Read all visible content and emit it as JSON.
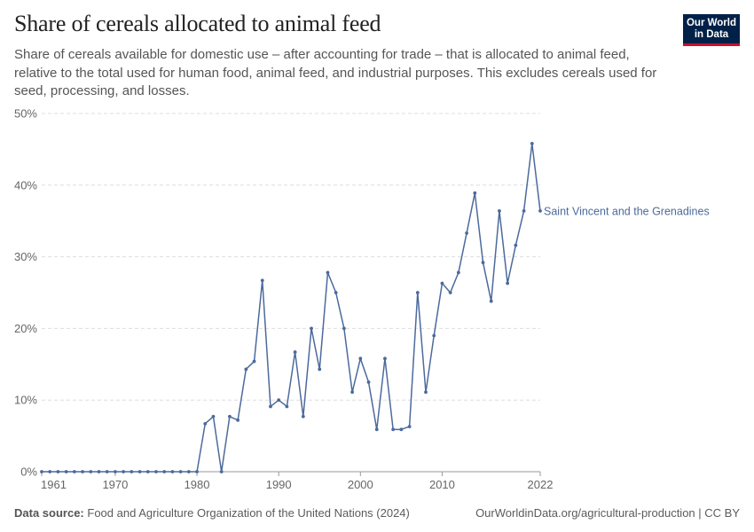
{
  "header": {
    "title": "Share of cereals allocated to animal feed",
    "subtitle": "Share of cereals available for domestic use – after accounting for trade – that is allocated to animal feed, relative to the total used for human food, animal feed, and industrial purposes. This excludes cereals used for seed, processing, and losses.",
    "logo_line1": "Our World",
    "logo_line2": "in Data"
  },
  "footer": {
    "source_label": "Data source:",
    "source_text": "Food and Agriculture Organization of the United Nations (2024)",
    "url_text": "OurWorldinData.org/agricultural-production | CC BY"
  },
  "colors": {
    "series": "#4c6a9c",
    "grid": "#dddddd",
    "axis": "#999999",
    "logo_bg": "#002147",
    "logo_accent": "#c8102e"
  },
  "chart_data": {
    "type": "line",
    "title": "Share of cereals allocated to animal feed",
    "xlabel": "",
    "ylabel": "",
    "xlim": [
      1961,
      2022
    ],
    "ylim": [
      0,
      50
    ],
    "y_ticks": [
      "0%",
      "10%",
      "20%",
      "30%",
      "40%",
      "50%"
    ],
    "x_ticks": [
      "1961",
      "1970",
      "1980",
      "1990",
      "2000",
      "2010",
      "2022"
    ],
    "grid": "horizontal dashed",
    "series": [
      {
        "name": "Saint Vincent and the Grenadines",
        "x": [
          1961,
          1962,
          1963,
          1964,
          1965,
          1966,
          1967,
          1968,
          1969,
          1970,
          1971,
          1972,
          1973,
          1974,
          1975,
          1976,
          1977,
          1978,
          1979,
          1980,
          1981,
          1982,
          1983,
          1984,
          1985,
          1986,
          1987,
          1988,
          1989,
          1990,
          1991,
          1992,
          1993,
          1994,
          1995,
          1996,
          1997,
          1998,
          1999,
          2000,
          2001,
          2002,
          2003,
          2004,
          2005,
          2006,
          2007,
          2008,
          2009,
          2010,
          2011,
          2012,
          2013,
          2014,
          2015,
          2016,
          2017,
          2018,
          2019,
          2020,
          2021,
          2022
        ],
        "values": [
          0,
          0,
          0,
          0,
          0,
          0,
          0,
          0,
          0,
          0,
          0,
          0,
          0,
          0,
          0,
          0,
          0,
          0,
          0,
          0,
          6.7,
          7.7,
          0,
          7.7,
          7.2,
          14.3,
          15.4,
          26.7,
          9.1,
          10.0,
          9.1,
          16.7,
          7.7,
          20.0,
          14.3,
          27.8,
          25.0,
          20.0,
          11.1,
          15.8,
          12.5,
          5.9,
          15.8,
          5.9,
          5.9,
          6.3,
          25.0,
          11.1,
          19.0,
          26.3,
          25.0,
          27.8,
          33.3,
          38.9,
          29.2,
          23.8,
          36.4,
          26.3,
          31.6,
          36.4,
          45.8,
          36.4
        ]
      }
    ]
  }
}
